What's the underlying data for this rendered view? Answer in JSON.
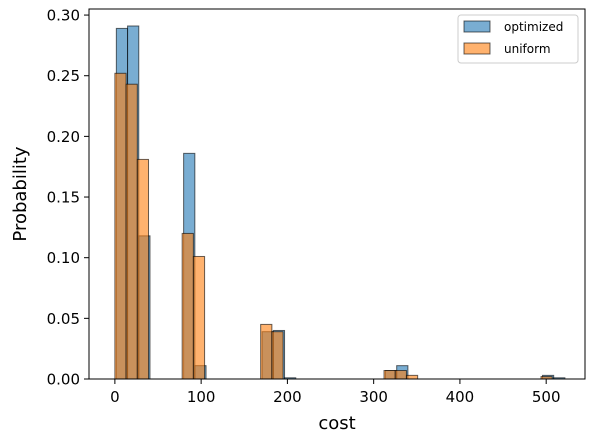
{
  "chart_data": {
    "type": "bar",
    "subtype": "overlaid-histogram",
    "xlabel": "cost",
    "ylabel": "Probability",
    "xlim": [
      -30,
      545
    ],
    "ylim": [
      0,
      0.305
    ],
    "xticks": [
      0,
      100,
      200,
      300,
      400,
      500
    ],
    "yticks": [
      0.0,
      0.05,
      0.1,
      0.15,
      0.2,
      0.25,
      0.3
    ],
    "ytick_labels": [
      "0.00",
      "0.05",
      "0.10",
      "0.15",
      "0.20",
      "0.25",
      "0.30"
    ],
    "grid": false,
    "legend_position": "top-right",
    "series": [
      {
        "name": "optimized",
        "color": "#1f77b4",
        "alpha": 0.6,
        "bins": [
          {
            "x0": 1.7,
            "x1": 14.7,
            "value": 0.289
          },
          {
            "x0": 14.7,
            "x1": 27.7,
            "value": 0.291
          },
          {
            "x0": 27.7,
            "x1": 40.7,
            "value": 0.118
          },
          {
            "x0": 79.7,
            "x1": 92.7,
            "value": 0.186
          },
          {
            "x0": 92.7,
            "x1": 105.7,
            "value": 0.011
          },
          {
            "x0": 170.7,
            "x1": 183.7,
            "value": 0.039
          },
          {
            "x0": 183.7,
            "x1": 196.7,
            "value": 0.04
          },
          {
            "x0": 196.7,
            "x1": 209.7,
            "value": 0.001
          },
          {
            "x0": 313.7,
            "x1": 326.7,
            "value": 0.007
          },
          {
            "x0": 326.7,
            "x1": 339.7,
            "value": 0.011
          },
          {
            "x0": 495.7,
            "x1": 508.7,
            "value": 0.003
          },
          {
            "x0": 508.7,
            "x1": 521.7,
            "value": 0.001
          }
        ]
      },
      {
        "name": "uniform",
        "color": "#ff7f0e",
        "alpha": 0.6,
        "bins": [
          {
            "x0": 0.0,
            "x1": 13.0,
            "value": 0.252
          },
          {
            "x0": 13.0,
            "x1": 26.0,
            "value": 0.243
          },
          {
            "x0": 26.0,
            "x1": 39.0,
            "value": 0.181
          },
          {
            "x0": 78.0,
            "x1": 91.0,
            "value": 0.12
          },
          {
            "x0": 91.0,
            "x1": 104.0,
            "value": 0.101
          },
          {
            "x0": 169.0,
            "x1": 182.0,
            "value": 0.045
          },
          {
            "x0": 182.0,
            "x1": 195.0,
            "value": 0.039
          },
          {
            "x0": 312.0,
            "x1": 325.0,
            "value": 0.007
          },
          {
            "x0": 325.0,
            "x1": 338.0,
            "value": 0.007
          },
          {
            "x0": 338.0,
            "x1": 351.0,
            "value": 0.003
          },
          {
            "x0": 494.0,
            "x1": 507.0,
            "value": 0.002
          }
        ]
      }
    ]
  }
}
